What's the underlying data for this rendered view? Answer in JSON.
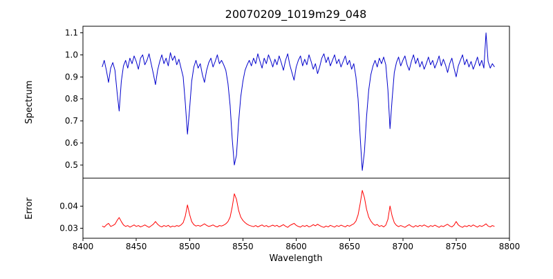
{
  "chart_data": {
    "type": "line",
    "title": "20070209_1019m29_048",
    "xlabel": "Wavelength",
    "xlim": [
      8400,
      8800
    ],
    "xticks": [
      8400,
      8450,
      8500,
      8550,
      8600,
      8650,
      8700,
      8750,
      8800
    ],
    "xtick_labels": [
      "8400",
      "8450",
      "8500",
      "8550",
      "8600",
      "8650",
      "8700",
      "8750",
      "8800"
    ],
    "grid": false,
    "legend": "none",
    "x": [
      8418,
      8420,
      8422,
      8424,
      8426,
      8428,
      8430,
      8432,
      8434,
      8436,
      8438,
      8440,
      8442,
      8444,
      8446,
      8448,
      8450,
      8452,
      8454,
      8456,
      8458,
      8460,
      8462,
      8464,
      8466,
      8468,
      8470,
      8472,
      8474,
      8476,
      8478,
      8480,
      8482,
      8484,
      8486,
      8488,
      8490,
      8492,
      8494,
      8496,
      8498,
      8500,
      8502,
      8504,
      8506,
      8508,
      8510,
      8512,
      8514,
      8516,
      8518,
      8520,
      8522,
      8524,
      8526,
      8528,
      8530,
      8532,
      8534,
      8536,
      8538,
      8540,
      8542,
      8544,
      8546,
      8548,
      8550,
      8552,
      8554,
      8556,
      8558,
      8560,
      8562,
      8564,
      8566,
      8568,
      8570,
      8572,
      8574,
      8576,
      8578,
      8580,
      8582,
      8584,
      8586,
      8588,
      8590,
      8592,
      8594,
      8596,
      8598,
      8600,
      8602,
      8604,
      8606,
      8608,
      8610,
      8612,
      8614,
      8616,
      8618,
      8620,
      8622,
      8624,
      8626,
      8628,
      8630,
      8632,
      8634,
      8636,
      8638,
      8640,
      8642,
      8644,
      8646,
      8648,
      8650,
      8652,
      8654,
      8656,
      8658,
      8660,
      8662,
      8664,
      8666,
      8668,
      8670,
      8672,
      8674,
      8676,
      8678,
      8680,
      8682,
      8684,
      8686,
      8688,
      8690,
      8692,
      8694,
      8696,
      8698,
      8700,
      8702,
      8704,
      8706,
      8708,
      8710,
      8712,
      8714,
      8716,
      8718,
      8720,
      8722,
      8724,
      8726,
      8728,
      8730,
      8732,
      8734,
      8736,
      8738,
      8740,
      8742,
      8744,
      8746,
      8748,
      8750,
      8752,
      8754,
      8756,
      8758,
      8760,
      8762,
      8764,
      8766,
      8768,
      8770,
      8772,
      8774,
      8776,
      8778,
      8780,
      8782,
      8784,
      8786
    ],
    "panels": [
      {
        "name": "spectrum",
        "ylabel": "Spectrum",
        "ylim": [
          0.44,
          1.13
        ],
        "yticks": [
          0.5,
          0.6,
          0.7,
          0.8,
          0.9,
          1.0,
          1.1
        ],
        "ytick_labels": [
          "0.5",
          "0.6",
          "0.7",
          "0.8",
          "0.9",
          "1.0",
          "1.1"
        ],
        "color": "#0000cc",
        "absorption_line_centers": [
          8433,
          8468,
          8498,
          8514,
          8542,
          8598,
          8620,
          8662,
          8688,
          8750
        ],
        "y": [
          0.945,
          0.975,
          0.93,
          0.875,
          0.94,
          0.965,
          0.93,
          0.83,
          0.745,
          0.88,
          0.95,
          0.975,
          0.94,
          0.985,
          0.96,
          0.995,
          0.97,
          0.935,
          0.985,
          1.0,
          0.955,
          0.975,
          1.005,
          0.96,
          0.915,
          0.865,
          0.93,
          0.97,
          1.0,
          0.96,
          0.985,
          0.95,
          1.01,
          0.975,
          0.995,
          0.955,
          0.98,
          0.94,
          0.9,
          0.78,
          0.64,
          0.755,
          0.88,
          0.945,
          0.975,
          0.94,
          0.96,
          0.91,
          0.875,
          0.93,
          0.965,
          0.985,
          0.945,
          0.97,
          1.0,
          0.96,
          0.975,
          0.955,
          0.93,
          0.87,
          0.77,
          0.62,
          0.5,
          0.545,
          0.695,
          0.81,
          0.88,
          0.93,
          0.955,
          0.975,
          0.95,
          0.985,
          0.96,
          1.005,
          0.97,
          0.94,
          0.985,
          0.96,
          1.0,
          0.975,
          0.945,
          0.98,
          0.955,
          0.995,
          0.965,
          0.93,
          0.975,
          1.005,
          0.955,
          0.92,
          0.885,
          0.945,
          0.975,
          0.995,
          0.95,
          0.98,
          0.955,
          1.0,
          0.97,
          0.935,
          0.96,
          0.915,
          0.945,
          0.985,
          1.005,
          0.965,
          0.99,
          0.95,
          0.975,
          1.0,
          0.96,
          0.98,
          0.945,
          0.97,
          0.995,
          0.955,
          0.975,
          0.935,
          0.96,
          0.9,
          0.8,
          0.63,
          0.475,
          0.56,
          0.72,
          0.84,
          0.91,
          0.95,
          0.975,
          0.945,
          0.985,
          0.96,
          0.99,
          0.955,
          0.84,
          0.665,
          0.8,
          0.92,
          0.965,
          0.99,
          0.95,
          0.975,
          0.995,
          0.955,
          0.93,
          0.97,
          1.0,
          0.96,
          0.985,
          0.945,
          0.97,
          0.935,
          0.96,
          0.99,
          0.955,
          0.975,
          0.94,
          0.965,
          0.995,
          0.95,
          0.98,
          0.955,
          0.92,
          0.96,
          0.985,
          0.94,
          0.9,
          0.95,
          0.975,
          1.0,
          0.955,
          0.98,
          0.945,
          0.97,
          0.935,
          0.96,
          0.99,
          0.95,
          0.975,
          0.94,
          1.1,
          0.97,
          0.94,
          0.96,
          0.945
        ]
      },
      {
        "name": "error",
        "ylabel": "Error",
        "ylim": [
          0.0255,
          0.0525
        ],
        "yticks": [
          0.03,
          0.04
        ],
        "ytick_labels": [
          "0.03",
          "0.04"
        ],
        "color": "#ff0000",
        "y": [
          0.031,
          0.0305,
          0.0315,
          0.0322,
          0.0308,
          0.0312,
          0.0318,
          0.0335,
          0.0348,
          0.033,
          0.0315,
          0.0308,
          0.0312,
          0.0305,
          0.031,
          0.0315,
          0.0308,
          0.0312,
          0.0306,
          0.031,
          0.0315,
          0.0309,
          0.0304,
          0.0311,
          0.0318,
          0.033,
          0.0318,
          0.031,
          0.0306,
          0.0312,
          0.0308,
          0.0313,
          0.0305,
          0.031,
          0.0307,
          0.0312,
          0.0309,
          0.0315,
          0.0325,
          0.0355,
          0.0405,
          0.0362,
          0.033,
          0.0316,
          0.031,
          0.0313,
          0.0309,
          0.0314,
          0.032,
          0.0313,
          0.0308,
          0.0311,
          0.0315,
          0.0309,
          0.0306,
          0.0312,
          0.031,
          0.0314,
          0.032,
          0.033,
          0.035,
          0.0395,
          0.0455,
          0.043,
          0.038,
          0.035,
          0.0335,
          0.0325,
          0.0318,
          0.0313,
          0.031,
          0.0307,
          0.0312,
          0.0306,
          0.0311,
          0.0315,
          0.0308,
          0.0312,
          0.0306,
          0.031,
          0.0314,
          0.0309,
          0.0313,
          0.0306,
          0.0311,
          0.0316,
          0.0309,
          0.0304,
          0.0312,
          0.0317,
          0.0322,
          0.0313,
          0.0308,
          0.0305,
          0.0312,
          0.0308,
          0.0313,
          0.0306,
          0.031,
          0.0316,
          0.0311,
          0.0318,
          0.0312,
          0.0307,
          0.0304,
          0.031,
          0.0306,
          0.0313,
          0.0309,
          0.0305,
          0.0312,
          0.0308,
          0.0314,
          0.031,
          0.0306,
          0.0313,
          0.0309,
          0.0315,
          0.032,
          0.0332,
          0.036,
          0.041,
          0.047,
          0.0438,
          0.0385,
          0.035,
          0.0332,
          0.032,
          0.0313,
          0.0317,
          0.0308,
          0.0312,
          0.0306,
          0.0314,
          0.034,
          0.04,
          0.0355,
          0.0325,
          0.0313,
          0.0307,
          0.0312,
          0.0308,
          0.0304,
          0.0311,
          0.0316,
          0.0309,
          0.0305,
          0.0312,
          0.0307,
          0.0313,
          0.0309,
          0.0315,
          0.031,
          0.0305,
          0.0312,
          0.0308,
          0.0314,
          0.0309,
          0.0304,
          0.0311,
          0.0307,
          0.0313,
          0.0318,
          0.031,
          0.0306,
          0.0314,
          0.033,
          0.0315,
          0.0308,
          0.0304,
          0.0311,
          0.0307,
          0.0313,
          0.0308,
          0.0315,
          0.031,
          0.0305,
          0.0312,
          0.0308,
          0.0313,
          0.032,
          0.031,
          0.0306,
          0.0312,
          0.0308
        ]
      }
    ]
  }
}
